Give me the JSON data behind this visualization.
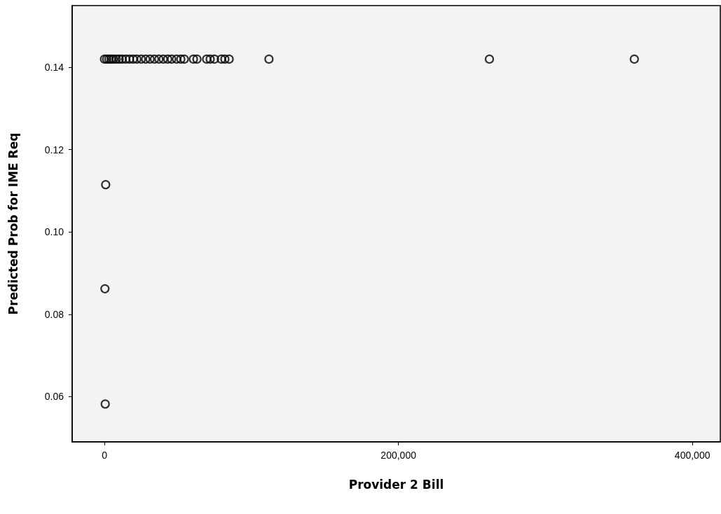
{
  "chart_data": {
    "type": "scatter",
    "xlabel": "Provider 2 Bill",
    "ylabel": "Predicted Prob for IME Req",
    "series": [
      {
        "color": "#000000",
        "x": [
          0,
          1500,
          3000,
          4500,
          6000,
          8000,
          10000,
          12000,
          14500,
          17000,
          19500,
          22000,
          25000,
          28000,
          31000,
          34000,
          37000,
          40000,
          43000,
          45700,
          49000,
          51900,
          54300,
          60500,
          62900,
          69500,
          71900,
          74800,
          79500,
          81900,
          84800,
          111900,
          261900,
          360500,
          800,
          300,
          500
        ],
        "values": [
          0.142,
          0.142,
          0.142,
          0.142,
          0.142,
          0.142,
          0.142,
          0.142,
          0.142,
          0.142,
          0.142,
          0.142,
          0.142,
          0.142,
          0.142,
          0.142,
          0.142,
          0.142,
          0.142,
          0.142,
          0.142,
          0.142,
          0.142,
          0.142,
          0.142,
          0.142,
          0.142,
          0.142,
          0.142,
          0.142,
          0.142,
          0.142,
          0.142,
          0.142,
          0.1115,
          0.0862,
          0.0582
        ]
      }
    ],
    "xlim": [
      -22000,
      419000
    ],
    "ylim": [
      0.049,
      0.155
    ],
    "xticks": [
      {
        "value": 0,
        "label": "0"
      },
      {
        "value": 200000,
        "label": "200,000"
      },
      {
        "value": 400000,
        "label": "400,000"
      }
    ],
    "yticks": [
      {
        "value": 0.06,
        "label": "0.06"
      },
      {
        "value": 0.08,
        "label": "0.08"
      },
      {
        "value": 0.1,
        "label": "0.10"
      },
      {
        "value": 0.12,
        "label": "0.12"
      },
      {
        "value": 0.14,
        "label": "0.14"
      }
    ],
    "marker": "circle",
    "grid": false
  }
}
